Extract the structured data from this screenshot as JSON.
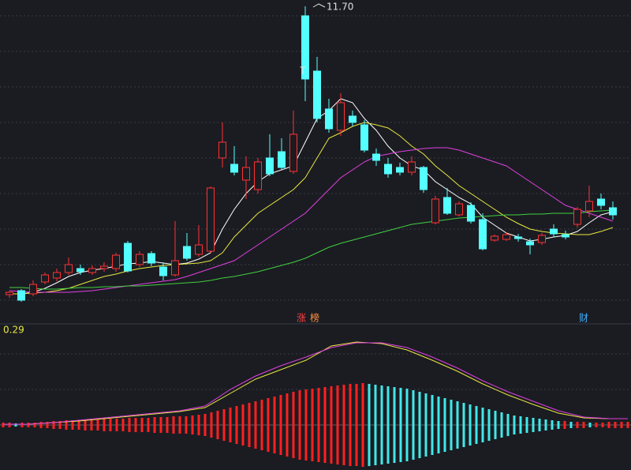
{
  "chart_data": [
    {
      "type": "candlestick",
      "ylim": [
        3.96,
        11.86
      ],
      "up_color": "#ff3232",
      "down_color": "#54ffff",
      "open": [
        4.4,
        4.5,
        4.42,
        4.72,
        4.82,
        4.96,
        5.06,
        4.96,
        5.06,
        5.06,
        5.7,
        5.16,
        5.44,
        5.1,
        4.9,
        5.62,
        5.42,
        5.5,
        7.86,
        7.7,
        7.3,
        7.06,
        7.86,
        8.02,
        7.52,
        11.46,
        10.06,
        9.1,
        8.56,
        8.92,
        8.7,
        7.96,
        7.7,
        7.62,
        7.5,
        7.62,
        6.22,
        6.86,
        6.42,
        6.66,
        6.3,
        5.78,
        5.8,
        5.86,
        5.74,
        5.72,
        6.06,
        5.92,
        6.18,
        6.52,
        6.82,
        6.6
      ],
      "high": [
        4.5,
        4.54,
        4.76,
        4.96,
        5.06,
        5.34,
        5.16,
        5.14,
        5.22,
        5.46,
        5.76,
        5.5,
        5.5,
        5.22,
        6.26,
        5.96,
        6.16,
        7.14,
        8.76,
        8.16,
        7.9,
        7.86,
        8.46,
        8.36,
        9.06,
        11.7,
        10.42,
        9.36,
        9.5,
        9.06,
        8.82,
        8.1,
        7.86,
        7.74,
        7.9,
        7.66,
        6.9,
        7.1,
        6.76,
        6.74,
        6.46,
        5.92,
        5.98,
        5.94,
        5.82,
        5.96,
        6.18,
        6.02,
        6.62,
        7.16,
        6.96,
        6.76
      ],
      "low": [
        4.32,
        4.22,
        4.36,
        4.66,
        4.74,
        4.9,
        4.9,
        4.9,
        4.98,
        4.98,
        4.96,
        5.1,
        5.12,
        4.76,
        4.86,
        5.26,
        5.36,
        5.46,
        7.62,
        7.42,
        6.82,
        6.96,
        7.4,
        7.56,
        7.46,
        9.3,
        8.76,
        8.5,
        8.42,
        8.66,
        8.0,
        7.66,
        7.36,
        7.42,
        7.42,
        6.98,
        6.18,
        6.42,
        6.38,
        6.2,
        5.52,
        5.74,
        5.76,
        5.74,
        5.42,
        5.66,
        5.86,
        5.8,
        6.1,
        6.36,
        6.56,
        6.3
      ],
      "close": [
        4.46,
        4.26,
        4.66,
        4.9,
        4.96,
        5.16,
        4.98,
        5.06,
        5.12,
        5.4,
        5.0,
        5.42,
        5.2,
        4.88,
        5.26,
        5.32,
        5.66,
        7.1,
        8.26,
        7.5,
        7.62,
        7.76,
        7.46,
        7.62,
        8.46,
        9.86,
        8.86,
        8.6,
        9.26,
        8.76,
        8.06,
        7.8,
        7.46,
        7.5,
        7.76,
        7.06,
        6.82,
        6.46,
        6.7,
        6.26,
        5.56,
        5.88,
        5.92,
        5.82,
        5.66,
        5.9,
        5.94,
        5.86,
        6.56,
        6.76,
        6.66,
        6.42
      ],
      "series": [
        {
          "color": "#ffffff",
          "values": [
            4.42,
            4.42,
            4.46,
            4.56,
            4.7,
            4.86,
            4.96,
            5.02,
            5.06,
            5.12,
            5.18,
            5.2,
            5.24,
            5.2,
            5.16,
            5.2,
            5.3,
            5.46,
            6.06,
            6.56,
            6.96,
            7.26,
            7.46,
            7.56,
            7.66,
            8.26,
            8.86,
            9.06,
            9.36,
            9.26,
            8.86,
            8.56,
            8.16,
            7.86,
            7.66,
            7.56,
            7.26,
            7.06,
            6.86,
            6.7,
            6.36,
            6.16,
            5.96,
            5.86,
            5.76,
            5.8,
            5.86,
            5.9,
            6.0,
            6.22,
            6.42,
            6.5
          ]
        },
        {
          "color": "#e8e840",
          "values": [
            4.42,
            4.42,
            4.44,
            4.46,
            4.5,
            4.56,
            4.66,
            4.76,
            4.86,
            4.92,
            5.0,
            5.06,
            5.1,
            5.14,
            5.16,
            5.18,
            5.2,
            5.26,
            5.46,
            5.86,
            6.16,
            6.46,
            6.66,
            6.86,
            7.06,
            7.36,
            7.86,
            8.36,
            8.5,
            8.66,
            8.76,
            8.7,
            8.62,
            8.42,
            8.16,
            7.96,
            7.66,
            7.42,
            7.16,
            6.96,
            6.76,
            6.56,
            6.36,
            6.2,
            6.06,
            6.0,
            5.96,
            5.94,
            5.92,
            5.92,
            6.0,
            6.1
          ]
        },
        {
          "color": "#e040e0",
          "values": [
            4.5,
            4.48,
            4.46,
            4.46,
            4.46,
            4.46,
            4.48,
            4.5,
            4.54,
            4.58,
            4.62,
            4.66,
            4.7,
            4.74,
            4.78,
            4.86,
            4.96,
            5.06,
            5.16,
            5.26,
            5.46,
            5.66,
            5.86,
            6.06,
            6.26,
            6.46,
            6.76,
            7.06,
            7.36,
            7.56,
            7.76,
            7.9,
            7.96,
            8.02,
            8.06,
            8.1,
            8.12,
            8.12,
            8.06,
            7.96,
            7.86,
            7.76,
            7.66,
            7.46,
            7.26,
            7.06,
            6.86,
            6.66,
            6.56,
            6.46,
            6.36,
            6.26
          ]
        },
        {
          "color": "#40d040",
          "values": [
            4.58,
            4.58,
            4.56,
            4.54,
            4.54,
            4.56,
            4.58,
            4.58,
            4.6,
            4.6,
            4.62,
            4.62,
            4.64,
            4.66,
            4.68,
            4.7,
            4.72,
            4.76,
            4.82,
            4.86,
            4.92,
            4.98,
            5.06,
            5.14,
            5.22,
            5.32,
            5.46,
            5.6,
            5.7,
            5.78,
            5.86,
            5.94,
            6.02,
            6.1,
            6.18,
            6.22,
            6.26,
            6.3,
            6.34,
            6.36,
            6.38,
            6.4,
            6.42,
            6.42,
            6.44,
            6.44,
            6.46,
            6.46,
            6.46,
            6.5,
            6.52,
            6.54
          ]
        }
      ],
      "annotations": [
        {
          "text": "11.70",
          "color": "#e0e0e0"
        },
        {
          "text": "T",
          "color": "#e0e0e0"
        },
        {
          "text": "涨",
          "color": "#ff4040"
        },
        {
          "text": "榜",
          "color": "#ff9040"
        },
        {
          "text": "财",
          "color": "#40b0ff"
        }
      ]
    },
    {
      "type": "macd",
      "ylim": [
        -0.114,
        0.256
      ],
      "up_color": "#ff2020",
      "down_color": "#40e8e8",
      "values": [
        0.006,
        0.006,
        0.004,
        0.006,
        0.006,
        0.006,
        0.008,
        0.008,
        0.01,
        0.01,
        0.012,
        0.012,
        0.012,
        0.014,
        0.014,
        0.014,
        0.016,
        0.016,
        0.016,
        0.016,
        0.018,
        0.018,
        0.018,
        0.018,
        0.02,
        0.02,
        0.02,
        0.022,
        0.022,
        0.022,
        0.024,
        0.026,
        0.028,
        0.032,
        0.036,
        0.04,
        0.044,
        0.048,
        0.052,
        0.056,
        0.06,
        0.064,
        0.068,
        0.072,
        0.076,
        0.08,
        0.084,
        0.088,
        0.09,
        0.092,
        0.094,
        0.096,
        0.098,
        0.1,
        0.102,
        0.104,
        0.104,
        0.106,
        0.104,
        0.102,
        0.1,
        0.098,
        0.096,
        0.094,
        0.092,
        0.088,
        0.084,
        0.08,
        0.076,
        0.072,
        0.068,
        0.064,
        0.06,
        0.056,
        0.052,
        0.048,
        0.044,
        0.04,
        0.036,
        0.032,
        0.028,
        0.024,
        0.022,
        0.02,
        0.018,
        0.016,
        0.014,
        0.012,
        0.01,
        0.01,
        0.008,
        0.008,
        0.008,
        0.006,
        0.006,
        0.006,
        0.008,
        0.008,
        0.008,
        0.008
      ],
      "series": [
        {
          "color": "#e8e840",
          "x": [
            0,
            4,
            8,
            12,
            16,
            20,
            24,
            28,
            32,
            36,
            40,
            44,
            48,
            52,
            56,
            60,
            64,
            68,
            72,
            76,
            80,
            84,
            88,
            92,
            96,
            99
          ],
          "values": [
            0.002,
            0.002,
            0.006,
            0.01,
            0.016,
            0.022,
            0.028,
            0.034,
            0.044,
            0.08,
            0.116,
            0.14,
            0.164,
            0.2,
            0.21,
            0.206,
            0.19,
            0.164,
            0.136,
            0.104,
            0.076,
            0.052,
            0.03,
            0.018,
            0.016,
            0.016
          ]
        },
        {
          "color": "#e040e0",
          "x": [
            0,
            4,
            8,
            12,
            16,
            20,
            24,
            28,
            32,
            36,
            40,
            44,
            48,
            52,
            56,
            60,
            64,
            68,
            72,
            76,
            80,
            84,
            88,
            92,
            96,
            99
          ],
          "values": [
            0.002,
            0.002,
            0.006,
            0.012,
            0.018,
            0.024,
            0.03,
            0.036,
            0.048,
            0.09,
            0.124,
            0.15,
            0.172,
            0.196,
            0.208,
            0.208,
            0.196,
            0.172,
            0.144,
            0.112,
            0.084,
            0.06,
            0.036,
            0.02,
            0.016,
            0.016
          ]
        }
      ],
      "annotations": [
        {
          "text": "0.29",
          "color": "#e8e840"
        }
      ]
    }
  ]
}
